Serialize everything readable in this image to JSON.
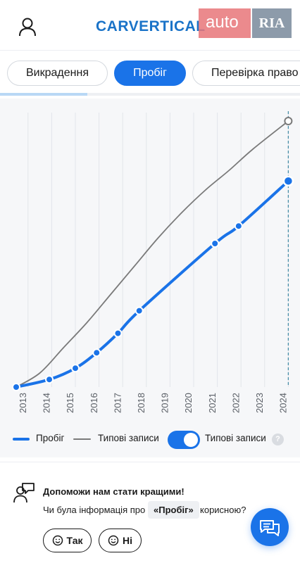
{
  "header": {
    "logo_text": "CARVERTICAL",
    "watermark_auto": "auto",
    "watermark_ria": "RIA"
  },
  "tabs": [
    {
      "label": "Викрадення",
      "active": false
    },
    {
      "label": "Пробіг",
      "active": true
    },
    {
      "label": "Перевірка право",
      "active": false
    }
  ],
  "section_progress": 0.29,
  "chart_data": {
    "type": "line",
    "x_tick_labels": [
      "2013",
      "2014",
      "2015",
      "2016",
      "2017",
      "2018",
      "2019",
      "2020",
      "2021",
      "2022",
      "2023",
      "2024"
    ],
    "xlim": [
      2013,
      2024.5
    ],
    "ylim": [
      0,
      1
    ],
    "series": [
      {
        "name": "Пробіг",
        "color": "#1a73e8",
        "points": [
          [
            2013.0,
            0.0
          ],
          [
            2014.4,
            0.027
          ],
          [
            2015.5,
            0.067
          ],
          [
            2016.4,
            0.122
          ],
          [
            2017.3,
            0.191
          ],
          [
            2018.2,
            0.271
          ],
          [
            2021.4,
            0.51
          ],
          [
            2022.4,
            0.572
          ],
          [
            2024.5,
            0.732
          ]
        ],
        "markers": true
      },
      {
        "name": "Типові записи",
        "color": "#7a7a7a",
        "points": [
          [
            2013.0,
            0.0
          ],
          [
            2014.0,
            0.05
          ],
          [
            2015.0,
            0.14
          ],
          [
            2016.0,
            0.23
          ],
          [
            2017.0,
            0.33
          ],
          [
            2018.0,
            0.43
          ],
          [
            2019.0,
            0.53
          ],
          [
            2020.0,
            0.62
          ],
          [
            2021.0,
            0.7
          ],
          [
            2022.0,
            0.77
          ],
          [
            2023.0,
            0.845
          ],
          [
            2024.5,
            0.945
          ]
        ],
        "markers": "end"
      }
    ],
    "grid": true,
    "current_marker_x": 2024.5
  },
  "legend": {
    "mileage_label": "Пробіг",
    "typical_label": "Типові записи",
    "toggle_label": "Типові записи",
    "toggle_on": true,
    "help_glyph": "?"
  },
  "feedback": {
    "title": "Допоможи нам стати кращими!",
    "question_prefix": "Чи була інформація про",
    "question_chip": "«Пробіг»",
    "question_suffix": "корисною?",
    "yes_label": "Так",
    "no_label": "Ні"
  },
  "colors": {
    "accent": "#1a73e8",
    "typical_line": "#7a7a7a",
    "chart_background": "#f6f7f9"
  },
  "icons": [
    "user-icon",
    "feedback-people-icon",
    "smile-icon",
    "chat-icon",
    "help-icon"
  ]
}
